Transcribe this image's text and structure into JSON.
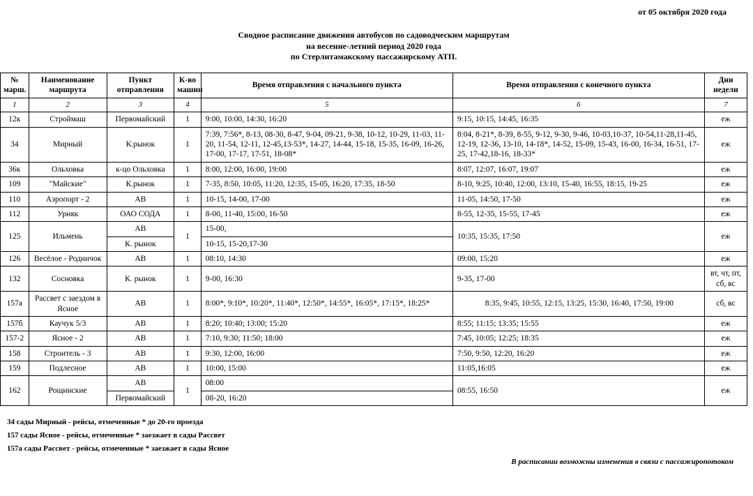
{
  "date_line": "от 05 октября 2020 года",
  "title": {
    "l1": "Сводное расписание движения автобусов по садоводческим маршрутам",
    "l2": "на весенне-летний период 2020 года",
    "l3": "по Стерлитамакскому пассажирскому АТП."
  },
  "columns": {
    "num": "№ марш.",
    "name": "Наименование маршрута",
    "point": "Пункт отправления",
    "cnt": "К-во машин",
    "dep": "Время отправления с начального пункта",
    "arr": "Время отправления с конечного пункта",
    "days": "Дни недели"
  },
  "colnums": {
    "c1": "1",
    "c2": "2",
    "c3": "3",
    "c4": "4",
    "c5": "5",
    "c6": "6",
    "c7": "7"
  },
  "rows": [
    {
      "num": "12к",
      "name": "Строймаш",
      "point": "Первомайский",
      "cnt": "1",
      "dep": "9:00, 10:00, 14:30, 16:20",
      "arr": "9:15, 10:15, 14:45, 16:35",
      "days": "еж"
    },
    {
      "num": "34",
      "name": "Мирный",
      "point": "К.рынок",
      "cnt": "1",
      "dep": "7:39, 7:56*, 8-13, 08-30, 8-47, 9-04, 09-21, 9-38, 10-12, 10-29, 11-03, 11-20, 11-54, 12-11, 12-45,13-53*, 14-27, 14-44, 15-18, 15-35, 16-09, 16-26, 17-00, 17-17, 17-51, 18-08*",
      "arr": "8:04, 8-21*, 8-39, 8-55, 9-12, 9-30, 9-46, 10-03,10-37, 10-54,11-28,11-45, 12-19, 12-36, 13-10, 14-18*, 14-52, 15-09, 15-43, 16-00, 16-34, 16-51, 17-25, 17-42,18-16, 18-33*",
      "days": "еж"
    },
    {
      "num": "36к",
      "name": "Ольховка",
      "point": "к-цо Ольховка",
      "cnt": "1",
      "dep": "8:00, 12:00, 16:00, 19:00",
      "arr": "8:07, 12:07, 16:07, 19:07",
      "days": "еж"
    },
    {
      "num": "109",
      "name": "\"Майские\"",
      "point": "К.рынок",
      "cnt": "1",
      "dep": "7-35, 8:50, 10:05, 11:20, 12:35, 15-05, 16:20, 17:35, 18-50",
      "arr": "8-10, 9:25, 10:40, 12:00, 13:10, 15-40, 16:55, 18:15, 19-25",
      "days": "еж"
    },
    {
      "num": "110",
      "name": "Аэропорт - 2",
      "point": "АВ",
      "cnt": "1",
      "dep": "10-15, 14-00, 17-00",
      "arr": "11-05, 14:50, 17-50",
      "days": "еж"
    },
    {
      "num": "112",
      "name": "Урняк",
      "point": "ОАО СОДА",
      "cnt": "1",
      "dep": "8-00, 11-40, 15:00, 16-50",
      "arr": "8-55, 12-35, 15-55, 17-45",
      "days": "еж"
    },
    {
      "num": "125",
      "name": "Ильмень",
      "point": [
        "АВ",
        "К. рынок"
      ],
      "cnt": "1",
      "dep": [
        "15-00,",
        "10-15, 15-20,17-30"
      ],
      "arr": "10:35, 15:35, 17:50",
      "days": "еж",
      "split": true
    },
    {
      "num": "126",
      "name": "Весёлое - Родничок",
      "point": "АВ",
      "cnt": "1",
      "dep": "08:10, 14:30",
      "arr": "09:00, 15:20",
      "days": "еж"
    },
    {
      "num": "132",
      "name": "Сосновка",
      "point": "К. рынок",
      "cnt": "1",
      "dep": "9-00, 16:30",
      "arr": "9-35, 17-00",
      "days": "вт, чт, пт, сб, вс"
    },
    {
      "num": "157а",
      "name": "Рассвет с заездом в Ясное",
      "point": "АВ",
      "cnt": "1",
      "dep": "8:00*, 9:10*, 10:20*, 11:40*, 12:50*, 14:55*, 16:05*, 17:15*, 18:25*",
      "arr": "8:35, 9:45, 10:55, 12:15, 13:25, 15:30, 16:40, 17:50, 19:00",
      "days": "сб, вс",
      "arr_center": true
    },
    {
      "num": "157б",
      "name": "Каучук 5/3",
      "point": "АВ",
      "cnt": "1",
      "dep": "8:20; 10:40; 13:00; 15:20",
      "arr": "8:55; 11:15; 13:35; 15:55",
      "days": "еж"
    },
    {
      "num": "157-2",
      "name": "Ясное - 2",
      "point": "АВ",
      "cnt": "1",
      "dep": "7:10,  9:30; 11:50; 18:00",
      "arr": "7:45, 10:05; 12:25; 18:35",
      "days": "еж"
    },
    {
      "num": "158",
      "name": "Строитель - 3",
      "point": "АВ",
      "cnt": "1",
      "dep": "9:30, 12:00, 16:00",
      "arr": "7:50, 9:50, 12:20, 16:20",
      "days": "еж"
    },
    {
      "num": "159",
      "name": "Подлесное",
      "point": "АВ",
      "cnt": "1",
      "dep": "10:00, 15:00",
      "arr": "11:05,16:05",
      "days": "еж"
    },
    {
      "num": "162",
      "name": "Рощинские",
      "point": [
        "АВ",
        "Первомайский"
      ],
      "cnt": "1",
      "dep": [
        "08:00",
        "08-20, 16:20"
      ],
      "arr": "08:55, 16:50",
      "days": "еж",
      "split": true
    }
  ],
  "footnotes": [
    "34 сады Мирный - рейсы, отмеченные * до 20-го проезда",
    "157 сады Ясное - рейсы, отмеченные * заезжает в сады Рассвет",
    "157а сады Рассвет - рейсы, отмеченные * заезжает в сады Ясное"
  ],
  "changes": "В расписании возможны изменения в связи с пассажиропотоком"
}
